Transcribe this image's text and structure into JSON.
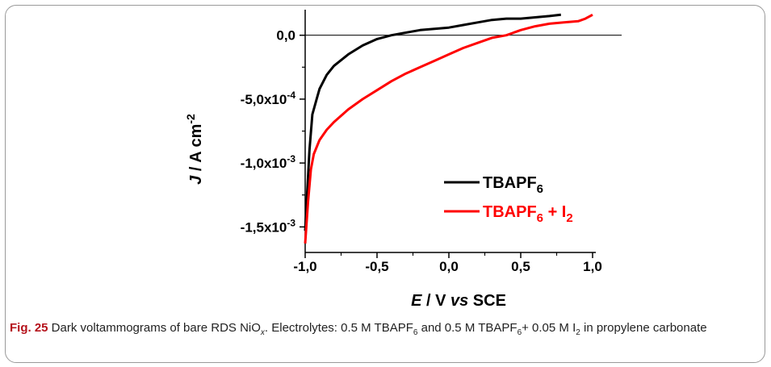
{
  "chart_data": {
    "type": "line",
    "xlabel": {
      "italic": "E",
      "sep": " / ",
      "rest": "V ",
      "italic2": "vs",
      "rest2": " SCE"
    },
    "ylabel": {
      "italic": "J",
      "sep": " / ",
      "unit": "A cm",
      "sup": "-2"
    },
    "xlim": [
      -1.0,
      1.0
    ],
    "ylim": [
      -0.0017,
      0.0002
    ],
    "x_ticks": [
      {
        "value": -1.0,
        "label": "-1,0"
      },
      {
        "value": -0.5,
        "label": "-0,5"
      },
      {
        "value": 0.0,
        "label": "0,0"
      },
      {
        "value": 0.5,
        "label": "0,5"
      },
      {
        "value": 1.0,
        "label": "1,0"
      }
    ],
    "y_ticks": [
      {
        "value": 0.0,
        "label": "0,0"
      },
      {
        "value": -0.0005,
        "label": "-5,0x10",
        "sup": "-4"
      },
      {
        "value": -0.001,
        "label": "-1,0x10",
        "sup": "-3"
      },
      {
        "value": -0.0015,
        "label": "-1,5x10",
        "sup": "-3"
      }
    ],
    "zero_line": true,
    "legend_position": "center-right",
    "series": [
      {
        "legend": {
          "base": "TBAPF",
          "sub": "6",
          "extra": ""
        },
        "color": "#000000",
        "x": [
          -1.0,
          -0.97,
          -0.95,
          -0.92,
          -0.9,
          -0.85,
          -0.8,
          -0.7,
          -0.6,
          -0.5,
          -0.4,
          -0.3,
          -0.2,
          -0.1,
          0.0,
          0.1,
          0.2,
          0.3,
          0.4,
          0.5,
          0.6,
          0.7,
          0.78
        ],
        "y": [
          -0.00153,
          -0.0009,
          -0.00062,
          -0.0005,
          -0.00042,
          -0.00031,
          -0.00024,
          -0.00015,
          -8e-05,
          -3e-05,
          0.0,
          2e-05,
          4e-05,
          5e-05,
          6e-05,
          8e-05,
          0.0001,
          0.00012,
          0.00013,
          0.00013,
          0.00014,
          0.00015,
          0.00016
        ]
      },
      {
        "legend": {
          "base": "TBAPF",
          "sub": "6",
          "extra": " + I",
          "sub2": "2"
        },
        "color": "#ff0000",
        "x": [
          -1.0,
          -0.98,
          -0.96,
          -0.94,
          -0.9,
          -0.85,
          -0.8,
          -0.7,
          -0.6,
          -0.5,
          -0.4,
          -0.3,
          -0.2,
          -0.1,
          0.0,
          0.1,
          0.2,
          0.3,
          0.4,
          0.5,
          0.6,
          0.7,
          0.8,
          0.9,
          0.95,
          1.0
        ],
        "y": [
          -0.00163,
          -0.0013,
          -0.00105,
          -0.00093,
          -0.00082,
          -0.00074,
          -0.00068,
          -0.00058,
          -0.0005,
          -0.00043,
          -0.00036,
          -0.0003,
          -0.00025,
          -0.0002,
          -0.00015,
          -0.0001,
          -6e-05,
          -2e-05,
          0.0,
          4e-05,
          7e-05,
          9e-05,
          0.0001,
          0.00011,
          0.00013,
          0.00016
        ]
      }
    ]
  },
  "caption": {
    "label": "Fig. 25",
    "text": [
      {
        "t": "  Dark voltammograms of bare RDS NiO"
      },
      {
        "sub": "x",
        "italic": true
      },
      {
        "t": ". Electrolytes: 0.5 M TBAPF"
      },
      {
        "sub": "6"
      },
      {
        "t": " and 0.5 M TBAPF"
      },
      {
        "sub": "6"
      },
      {
        "t": "+ 0.05 M I"
      },
      {
        "sub": "2"
      },
      {
        "t": " in propylene carbonate"
      }
    ]
  }
}
